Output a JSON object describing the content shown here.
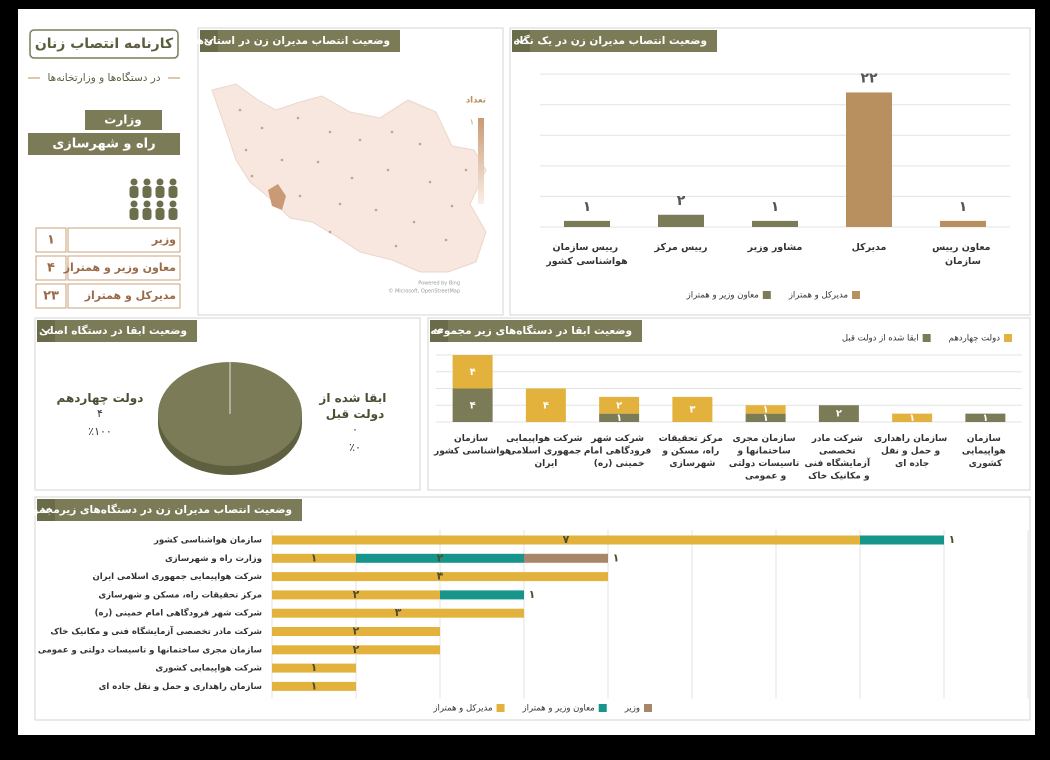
{
  "header": {
    "title": "کارنامه انتصاب زنان",
    "subtitle": "در دستگاه‌ها و وزارتخانه‌ها",
    "ministry_label": "وزارت",
    "ministry_name": "راه و شهرسازی",
    "table": {
      "rows": [
        [
          "وزیر",
          "۱"
        ],
        [
          "معاون وزیر و همتراز",
          "۴"
        ],
        [
          "مدیرکل و همتراز",
          "۲۳"
        ]
      ]
    }
  },
  "chart_data": [
    {
      "type": "map",
      "title": "وضعیت انتصاب مدیران زن در استان‌ها",
      "legend_title": "تعداد",
      "legend_ticks": [
        {
          "value": 1,
          "label": "۱"
        }
      ],
      "credits": [
        "Powered by Bing",
        "© Microsoft, OpenStreetMap"
      ]
    },
    {
      "type": "bar",
      "title": "وضعیت انتصاب مدیران زن در یک نگاه",
      "categories": [
        "رییس سازمان هواشناسی کشور",
        "رییس مرکز",
        "مشاور وزیر",
        "مدیرکل",
        "معاون رییس سازمان"
      ],
      "series": [
        {
          "name": "مدیرکل و همتراز",
          "color": "#b8905f",
          "values": [
            null,
            null,
            null,
            22,
            1
          ],
          "value_labels": [
            null,
            null,
            null,
            "۲۲",
            "۱"
          ]
        },
        {
          "name": "معاون وزیر و همتراز",
          "color": "#7b7c57",
          "values": [
            1,
            2,
            1,
            null,
            null
          ],
          "value_labels": [
            "۱",
            "۲",
            "۱",
            null,
            null
          ]
        }
      ],
      "ylim": [
        0,
        26
      ],
      "yticks": [
        0,
        5,
        10,
        15,
        20,
        25
      ],
      "grid": true
    },
    {
      "type": "pie",
      "title": "وضعیت ابقا در دستگاه اصلی",
      "categories": [
        "دولت چهاردهم",
        "ابقا شده از دولت قبل"
      ],
      "values": [
        4,
        0
      ],
      "value_labels": [
        "۴",
        "۰"
      ],
      "percents": [
        100,
        0
      ],
      "percent_labels": [
        "٪۱۰۰",
        "٪۰"
      ],
      "colors": [
        "#7b7c57",
        "#b8905f"
      ]
    },
    {
      "type": "stacked_bar",
      "title": "وضعیت ابقا در دستگاه‌های زیر مجموعه",
      "categories": [
        "سازمان هواشناسی کشور",
        "شرکت هواپیمایی جمهوری اسلامی ایران",
        "شرکت شهر فرودگاهی امام خمینی (ره)",
        "مرکز تحقیقات راه، مسکن و شهرسازی",
        "سازمان مجری ساختمانها و تاسیسات دولتی و عمومی",
        "شرکت مادر تخصصی آزمایشگاه فنی و مکانیک خاک",
        "سازمان راهداری و حمل و نقل جاده ای",
        "سازمان هواپیمایی کشوری"
      ],
      "series": [
        {
          "name": "دولت چهاردهم",
          "color": "#e3b23c",
          "values": [
            4,
            4,
            2,
            3,
            1,
            null,
            1,
            null
          ],
          "value_labels": [
            "۴",
            "۴",
            "۲",
            "۳",
            "۱",
            null,
            "۱",
            null
          ]
        },
        {
          "name": "ابقا شده از دولت قبل",
          "color": "#7b7c57",
          "values": [
            4,
            null,
            1,
            0,
            1,
            2,
            null,
            1
          ],
          "value_labels": [
            "۴",
            null,
            "۱",
            null,
            "۱",
            "۲",
            null,
            "۱"
          ]
        }
      ],
      "ylim": [
        0,
        8
      ],
      "yticks": [
        0,
        2,
        4,
        6,
        8
      ],
      "grid": true
    },
    {
      "type": "horizontal_stacked_bar",
      "title": "وضعیت انتصاب مدیران زن در دستگاه‌های زیرمجموعه",
      "categories": [
        "سازمان هواشناسی کشور",
        "وزارت راه و شهرسازی",
        "شرکت هواپیمایی جمهوری اسلامی ایران",
        "مرکز تحقیقات راه، مسکن و شهرسازی",
        "شرکت شهر فرودگاهی امام خمینی (ره)",
        "شرکت مادر تخصصی آزمایشگاه فنی و مکانیک خاک",
        "سازمان مجری ساختمانها و تاسیسات دولتی و عمومی",
        "شرکت هواپیمایی کشوری",
        "سازمان راهداری و حمل و نقل جاده ای"
      ],
      "series": [
        {
          "name": "وزیر",
          "color": "#a8866a",
          "values": [
            null,
            1,
            null,
            null,
            null,
            null,
            null,
            null,
            null
          ],
          "value_labels": [
            null,
            "۱",
            null,
            null,
            null,
            null,
            null,
            null,
            null
          ]
        },
        {
          "name": "معاون وزیر و همتراز",
          "color": "#17958a",
          "values": [
            1,
            2,
            null,
            1,
            null,
            null,
            null,
            null,
            null
          ],
          "value_labels": [
            "۱",
            "۲",
            null,
            "۱",
            null,
            null,
            null,
            null,
            null
          ]
        },
        {
          "name": "مدیرکل و همتراز",
          "color": "#e3b23c",
          "values": [
            7,
            1,
            4,
            2,
            3,
            2,
            2,
            1,
            1
          ],
          "value_labels": [
            "۷",
            "۱",
            "۴",
            "۲",
            "۳",
            "۲",
            "۲",
            "۱",
            "۱"
          ]
        }
      ],
      "xlim": [
        0,
        9
      ],
      "xticks": [
        0,
        1,
        2,
        3,
        4,
        5,
        6,
        7,
        8,
        9
      ],
      "grid": true
    }
  ]
}
